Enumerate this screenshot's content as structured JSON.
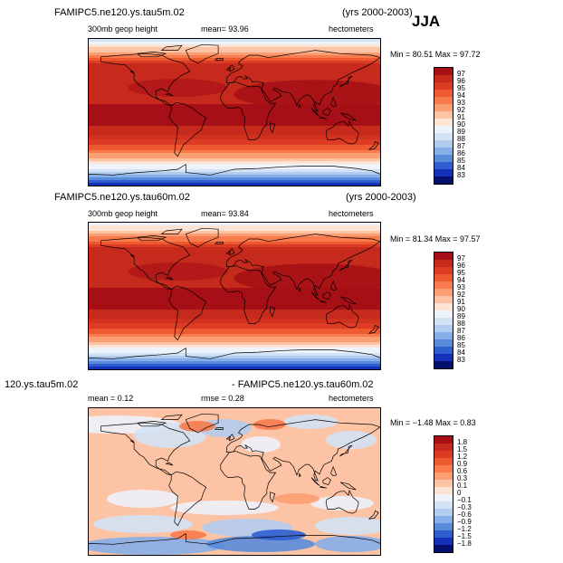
{
  "season": "JJA",
  "chart_data": [
    {
      "type": "heatmap",
      "title": "FAMIPC5.ne120.ys.tau5m.02",
      "subtitle": "(yrs 2000-2003)",
      "variable": "300mb geop height",
      "stat_text": "mean=   93.96",
      "units": "hectometers",
      "minmax_text": "Min =   80.51  Max =   97.72",
      "min": 80.51,
      "max": 97.72,
      "mean": 93.96,
      "legend_levels": [
        "97",
        "96",
        "95",
        "94",
        "93",
        "92",
        "91",
        "90",
        "89",
        "88",
        "87",
        "86",
        "85",
        "84",
        "83"
      ],
      "legend_colors": [
        "#a50f15",
        "#c52a1c",
        "#dd3c24",
        "#ee5a30",
        "#f77b4c",
        "#fc9e73",
        "#fdc3a5",
        "#fde3d4",
        "#eef2fb",
        "#d3e2f5",
        "#b2ccef",
        "#86aee8",
        "#5a8bdb",
        "#2f5ed0",
        "#1530b8",
        "#05106e"
      ]
    },
    {
      "type": "heatmap",
      "title": "FAMIPC5.ne120.ys.tau60m.02",
      "subtitle": "(yrs 2000-2003)",
      "variable": "300mb geop height",
      "stat_text": "mean=   93.84",
      "units": "hectometers",
      "minmax_text": "Min =   81.34  Max =   97.57",
      "min": 81.34,
      "max": 97.57,
      "mean": 93.84,
      "legend_levels": [
        "97",
        "96",
        "95",
        "94",
        "93",
        "92",
        "91",
        "90",
        "89",
        "88",
        "87",
        "86",
        "85",
        "84",
        "83"
      ],
      "legend_colors": [
        "#a50f15",
        "#c52a1c",
        "#dd3c24",
        "#ee5a30",
        "#f77b4c",
        "#fc9e73",
        "#fdc3a5",
        "#fde3d4",
        "#eef2fb",
        "#d3e2f5",
        "#b2ccef",
        "#86aee8",
        "#5a8bdb",
        "#2f5ed0",
        "#1530b8",
        "#05106e"
      ]
    },
    {
      "type": "heatmap",
      "title": "120.ys.tau5m.02",
      "subtitle": "- FAMIPC5.ne120.ys.tau60m.02",
      "stat_text": "mean =    0.12",
      "rmse_text": "rmse =    0.28",
      "units": "hectometers",
      "minmax_text": "Min =  −1.48  Max =    0.83",
      "min": -1.48,
      "max": 0.83,
      "mean": 0.12,
      "rmse": 0.28,
      "legend_levels": [
        "1.8",
        "1.5",
        "1.2",
        "0.9",
        "0.6",
        "0.3",
        "0.1",
        "0",
        "−0.1",
        "−0.3",
        "−0.6",
        "−0.9",
        "−1.2",
        "−1.5",
        "−1.8"
      ],
      "legend_colors": [
        "#a50f15",
        "#c52a1c",
        "#dd3c24",
        "#ee5a30",
        "#f77b4c",
        "#fc9e73",
        "#fdc3a5",
        "#fde3d4",
        "#eef2fb",
        "#d3e2f5",
        "#b2ccef",
        "#86aee8",
        "#5a8bdb",
        "#2f5ed0",
        "#1530b8",
        "#05106e"
      ]
    }
  ]
}
